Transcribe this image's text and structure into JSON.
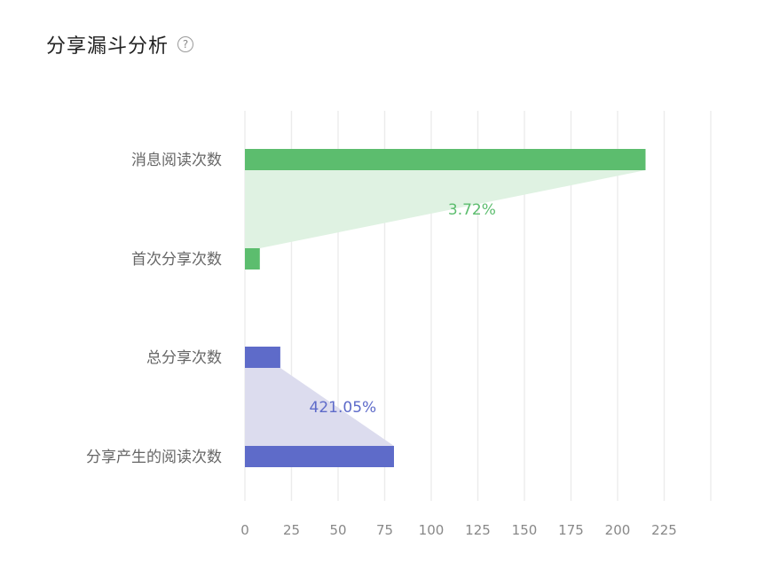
{
  "header": {
    "title": "分享漏斗分析",
    "help_icon": "?"
  },
  "chart_data": {
    "type": "bar",
    "orientation": "horizontal",
    "categories": [
      "消息阅读次数",
      "首次分享次数",
      "总分享次数",
      "分享产生的阅读次数"
    ],
    "values": [
      215,
      8,
      19,
      80
    ],
    "bar_colors": [
      "#5cbd6e",
      "#5cbd6e",
      "#5e6bc9",
      "#5e6bc9"
    ],
    "funnels": [
      {
        "from": 0,
        "to": 1,
        "label": "3.72%",
        "color": "#5cbd6e",
        "fill": "#dff2e2"
      },
      {
        "from": 2,
        "to": 3,
        "label": "421.05%",
        "color": "#5e6bc9",
        "fill": "#dcdcee"
      }
    ],
    "xlim": [
      0,
      250
    ],
    "xticks": [
      "0",
      "25",
      "50",
      "75",
      "100",
      "125",
      "150",
      "175",
      "200",
      "225"
    ],
    "grid": true
  }
}
